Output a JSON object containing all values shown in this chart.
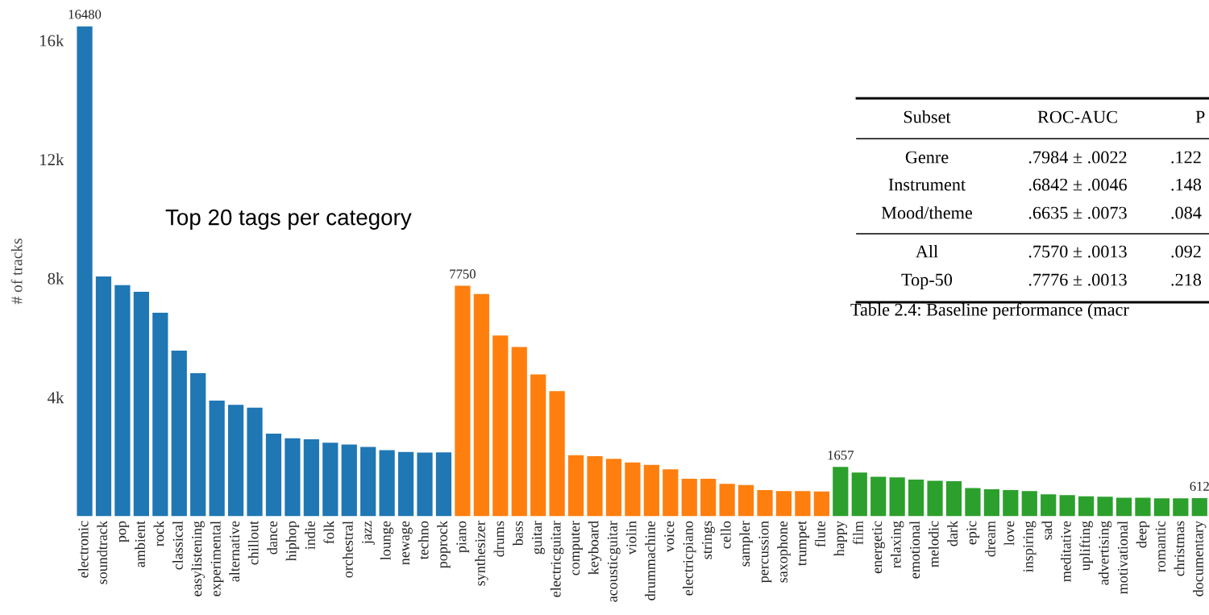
{
  "chart_data": [
    {
      "type": "bar",
      "ylabel": "# of tracks",
      "annotations": [
        "Top 20 tags per category"
      ],
      "categories": [
        "electronic",
        "soundtrack",
        "pop",
        "ambient",
        "rock",
        "classical",
        "easylistening",
        "experimental",
        "alternative",
        "chillout",
        "dance",
        "hiphop",
        "indie",
        "folk",
        "orchestral",
        "jazz",
        "lounge",
        "newage",
        "techno",
        "poprock",
        "piano",
        "synthesizer",
        "drums",
        "bass",
        "guitar",
        "electricguitar",
        "computer",
        "keyboard",
        "acousticguitar",
        "violin",
        "drummachine",
        "voice",
        "electricpiano",
        "strings",
        "cello",
        "sampler",
        "percussion",
        "saxophone",
        "trumpet",
        "flute",
        "happy",
        "film",
        "energetic",
        "relaxing",
        "emotional",
        "melodic",
        "dark",
        "epic",
        "dream",
        "love",
        "inspiring",
        "sad",
        "meditative",
        "uplifting",
        "advertising",
        "motivational",
        "deep",
        "romantic",
        "christmas",
        "documentary"
      ],
      "values": [
        16480,
        8060,
        7770,
        7550,
        6840,
        5570,
        4810,
        3890,
        3750,
        3650,
        2780,
        2620,
        2590,
        2470,
        2410,
        2330,
        2220,
        2160,
        2140,
        2150,
        7750,
        7470,
        6080,
        5690,
        4770,
        4210,
        2050,
        2020,
        1930,
        1810,
        1730,
        1580,
        1260,
        1260,
        1090,
        1050,
        880,
        850,
        850,
        830,
        1657,
        1470,
        1330,
        1310,
        1230,
        1190,
        1180,
        950,
        910,
        880,
        850,
        740,
        710,
        670,
        660,
        620,
        620,
        600,
        600,
        612
      ],
      "value_labels": [
        "16480",
        null,
        null,
        null,
        null,
        null,
        null,
        null,
        null,
        null,
        null,
        null,
        null,
        null,
        null,
        null,
        null,
        null,
        null,
        null,
        "7750",
        null,
        null,
        null,
        null,
        null,
        null,
        null,
        null,
        null,
        null,
        null,
        null,
        null,
        null,
        null,
        null,
        null,
        null,
        null,
        "1657",
        null,
        null,
        null,
        null,
        null,
        null,
        null,
        null,
        null,
        null,
        null,
        null,
        null,
        null,
        null,
        null,
        null,
        null,
        "612"
      ],
      "colors": [
        "#1f77b4",
        "#1f77b4",
        "#1f77b4",
        "#1f77b4",
        "#1f77b4",
        "#1f77b4",
        "#1f77b4",
        "#1f77b4",
        "#1f77b4",
        "#1f77b4",
        "#1f77b4",
        "#1f77b4",
        "#1f77b4",
        "#1f77b4",
        "#1f77b4",
        "#1f77b4",
        "#1f77b4",
        "#1f77b4",
        "#1f77b4",
        "#1f77b4",
        "#ff7f0e",
        "#ff7f0e",
        "#ff7f0e",
        "#ff7f0e",
        "#ff7f0e",
        "#ff7f0e",
        "#ff7f0e",
        "#ff7f0e",
        "#ff7f0e",
        "#ff7f0e",
        "#ff7f0e",
        "#ff7f0e",
        "#ff7f0e",
        "#ff7f0e",
        "#ff7f0e",
        "#ff7f0e",
        "#ff7f0e",
        "#ff7f0e",
        "#ff7f0e",
        "#ff7f0e",
        "#2ca02c",
        "#2ca02c",
        "#2ca02c",
        "#2ca02c",
        "#2ca02c",
        "#2ca02c",
        "#2ca02c",
        "#2ca02c",
        "#2ca02c",
        "#2ca02c",
        "#2ca02c",
        "#2ca02c",
        "#2ca02c",
        "#2ca02c",
        "#2ca02c",
        "#2ca02c",
        "#2ca02c",
        "#2ca02c",
        "#2ca02c",
        "#2ca02c"
      ],
      "ylim": [
        0,
        16480
      ],
      "yticks": [
        {
          "value": 4000,
          "label": "4k"
        },
        {
          "value": 8000,
          "label": "8k"
        },
        {
          "value": 12000,
          "label": "12k"
        },
        {
          "value": 16000,
          "label": "16k"
        }
      ],
      "grid": false
    },
    {
      "type": "other",
      "annotations": [
        "Subset",
        "ROC-AUC",
        "P",
        "Genre",
        ".7984 ± .0022",
        ".122",
        "Instrument",
        ".6842 ± .0046",
        ".148",
        "Mood/theme",
        ".6635 ± .0073",
        ".084",
        "All",
        ".7570 ± .0013",
        ".092",
        "Top-50",
        ".7776 ± .0013",
        ".218",
        "Table 2.4: Baseline performance (macr"
      ]
    }
  ]
}
